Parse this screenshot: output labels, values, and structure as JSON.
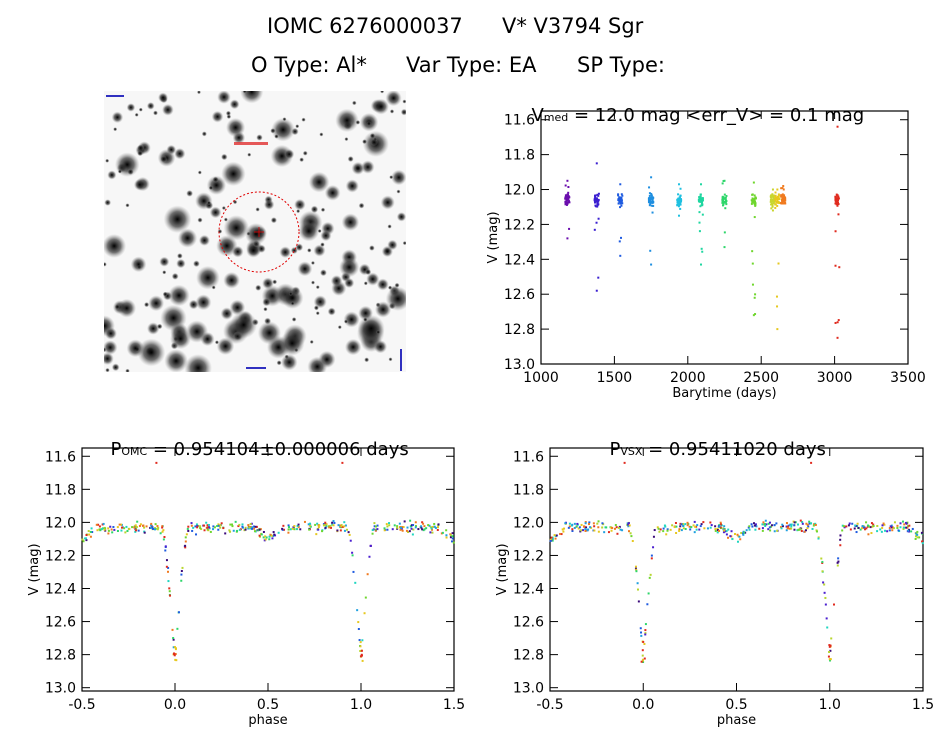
{
  "header": {
    "line1_left": "IOMC 6276000037",
    "line1_right": "V* V3794 Sgr",
    "line2_o_type": "O Type: Al*",
    "line2_var_type": "Var Type: EA",
    "line2_sp_type": "SP Type:"
  },
  "image_panel": {
    "stars_seed": 7
  },
  "chart_data": [
    {
      "type": "scatter",
      "title": {
        "main": "V",
        "sub": "med",
        "rest": " = 12.0 mag <err_V> = 0.1 mag"
      },
      "xlabel": "Barytime (days)",
      "ylabel": "V (mag)",
      "xlim": [
        1000,
        3500
      ],
      "ylim": [
        13.0,
        11.55
      ],
      "y_inverted": true,
      "xticks": [
        1000,
        1500,
        2000,
        2500,
        3000,
        3500
      ],
      "yticks": [
        11.6,
        11.8,
        12.0,
        12.2,
        12.4,
        12.6,
        12.8,
        13.0
      ],
      "groups": [
        {
          "x": 1180,
          "color": "#6a0dad",
          "ymin": 11.95,
          "ymax": 12.28
        },
        {
          "x": 1380,
          "color": "#3a1fd0",
          "ymin": 11.85,
          "ymax": 12.58
        },
        {
          "x": 1540,
          "color": "#1f5be0",
          "ymin": 11.97,
          "ymax": 12.38
        },
        {
          "x": 1750,
          "color": "#1f8fe0",
          "ymin": 11.93,
          "ymax": 12.43
        },
        {
          "x": 1940,
          "color": "#1fc0e0",
          "ymin": 11.97,
          "ymax": 12.15
        },
        {
          "x": 2090,
          "color": "#1fd6a0",
          "ymin": 11.97,
          "ymax": 12.43
        },
        {
          "x": 2250,
          "color": "#2ed66a",
          "ymin": 11.95,
          "ymax": 12.33
        },
        {
          "x": 2450,
          "color": "#6fd62e",
          "ymin": 11.96,
          "ymax": 12.72
        },
        {
          "x": 2580,
          "color": "#c8d62e",
          "ymin": 12.0,
          "ymax": 12.12
        },
        {
          "x": 2610,
          "color": "#e6c81f",
          "ymin": 12.0,
          "ymax": 12.8
        },
        {
          "x": 2650,
          "color": "#f07a1f",
          "ymin": 11.98,
          "ymax": 12.08
        },
        {
          "x": 3020,
          "color": "#e02b1f",
          "ymin": 11.64,
          "ymax": 12.85
        }
      ]
    },
    {
      "type": "scatter",
      "title": {
        "main": "P",
        "sub": "OMC",
        "rest": " = 0.954104±0.000006 days"
      },
      "xlabel": "phase",
      "ylabel": "V (mag)",
      "xlim": [
        -0.5,
        1.5
      ],
      "ylim": [
        13.02,
        11.55
      ],
      "y_inverted": true,
      "xticks": [
        -0.5,
        0.0,
        0.5,
        1.0,
        1.5
      ],
      "yticks": [
        11.6,
        11.8,
        12.0,
        12.2,
        12.4,
        12.6,
        12.8,
        13.0
      ],
      "eclipse": {
        "primary_phase": 0.0,
        "depth": 12.85,
        "secondary_depth": 12.1
      }
    },
    {
      "type": "scatter",
      "title": {
        "main": "P",
        "sub": "VSX",
        "rest": " = 0.95411020 days"
      },
      "xlabel": "phase",
      "ylabel": "V (mag)",
      "xlim": [
        -0.5,
        1.5
      ],
      "ylim": [
        13.02,
        11.55
      ],
      "y_inverted": true,
      "xticks": [
        -0.5,
        0.0,
        0.5,
        1.0,
        1.5
      ],
      "yticks": [
        11.6,
        11.8,
        12.0,
        12.2,
        12.4,
        12.6,
        12.8,
        13.0
      ],
      "eclipse": {
        "primary_phase": 0.0,
        "depth": 12.85,
        "secondary_depth": 12.1
      }
    }
  ]
}
